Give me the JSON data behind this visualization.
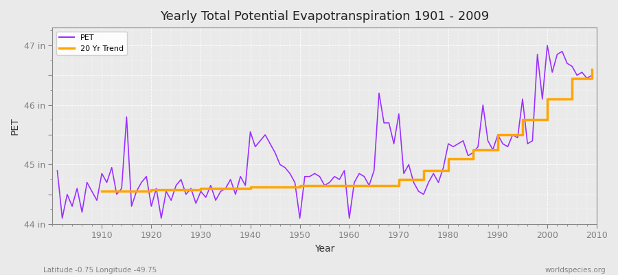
{
  "title": "Yearly Total Potential Evapotranspiration 1901 - 2009",
  "xlabel": "Year",
  "ylabel": "PET",
  "x_label_bottom_left": "Latitude -0.75 Longitude -49.75",
  "x_label_bottom_right": "worldspecies.org",
  "pet_color": "#9B30FF",
  "trend_color": "#FFA500",
  "bg_color": "#EAEAEA",
  "years": [
    1901,
    1902,
    1903,
    1904,
    1905,
    1906,
    1907,
    1908,
    1909,
    1910,
    1911,
    1912,
    1913,
    1914,
    1915,
    1916,
    1917,
    1918,
    1919,
    1920,
    1921,
    1922,
    1923,
    1924,
    1925,
    1926,
    1927,
    1928,
    1929,
    1930,
    1931,
    1932,
    1933,
    1934,
    1935,
    1936,
    1937,
    1938,
    1939,
    1940,
    1941,
    1942,
    1943,
    1944,
    1945,
    1946,
    1947,
    1948,
    1949,
    1950,
    1951,
    1952,
    1953,
    1954,
    1955,
    1956,
    1957,
    1958,
    1959,
    1960,
    1961,
    1962,
    1963,
    1964,
    1965,
    1966,
    1967,
    1968,
    1969,
    1970,
    1971,
    1972,
    1973,
    1974,
    1975,
    1976,
    1977,
    1978,
    1979,
    1980,
    1981,
    1982,
    1983,
    1984,
    1985,
    1986,
    1987,
    1988,
    1989,
    1990,
    1991,
    1992,
    1993,
    1994,
    1995,
    1996,
    1997,
    1998,
    1999,
    2000,
    2001,
    2002,
    2003,
    2004,
    2005,
    2006,
    2007,
    2008,
    2009
  ],
  "pet_values": [
    44.9,
    44.1,
    44.5,
    44.3,
    44.6,
    44.2,
    44.7,
    44.55,
    44.4,
    44.85,
    44.7,
    44.95,
    44.5,
    44.6,
    45.8,
    44.3,
    44.55,
    44.7,
    44.8,
    44.3,
    44.6,
    44.1,
    44.55,
    44.4,
    44.65,
    44.75,
    44.5,
    44.6,
    44.35,
    44.55,
    44.45,
    44.65,
    44.4,
    44.55,
    44.6,
    44.75,
    44.5,
    44.8,
    44.65,
    45.55,
    45.3,
    45.4,
    45.5,
    45.35,
    45.2,
    45.0,
    44.95,
    44.85,
    44.7,
    44.1,
    44.8,
    44.8,
    44.85,
    44.8,
    44.65,
    44.7,
    44.8,
    44.75,
    44.9,
    44.1,
    44.7,
    44.85,
    44.8,
    44.65,
    44.9,
    46.2,
    45.7,
    45.7,
    45.35,
    45.85,
    44.85,
    45.0,
    44.7,
    44.55,
    44.5,
    44.7,
    44.85,
    44.7,
    44.95,
    45.35,
    45.3,
    45.35,
    45.4,
    45.15,
    45.2,
    45.3,
    46.0,
    45.4,
    45.25,
    45.5,
    45.35,
    45.3,
    45.5,
    45.45,
    46.1,
    45.35,
    45.4,
    46.85,
    46.1,
    47.0,
    46.55,
    46.85,
    46.9,
    46.7,
    46.65,
    46.5,
    46.55,
    46.45,
    46.5
  ],
  "trend_years": [
    1910,
    1920,
    1930,
    1940,
    1950,
    1960,
    1970,
    1975,
    1980,
    1985,
    1990,
    1995,
    2000,
    2005,
    2009
  ],
  "trend_values": [
    44.55,
    44.58,
    44.6,
    44.62,
    44.65,
    44.65,
    44.75,
    44.9,
    45.1,
    45.25,
    45.5,
    45.75,
    46.1,
    46.45,
    46.6
  ]
}
